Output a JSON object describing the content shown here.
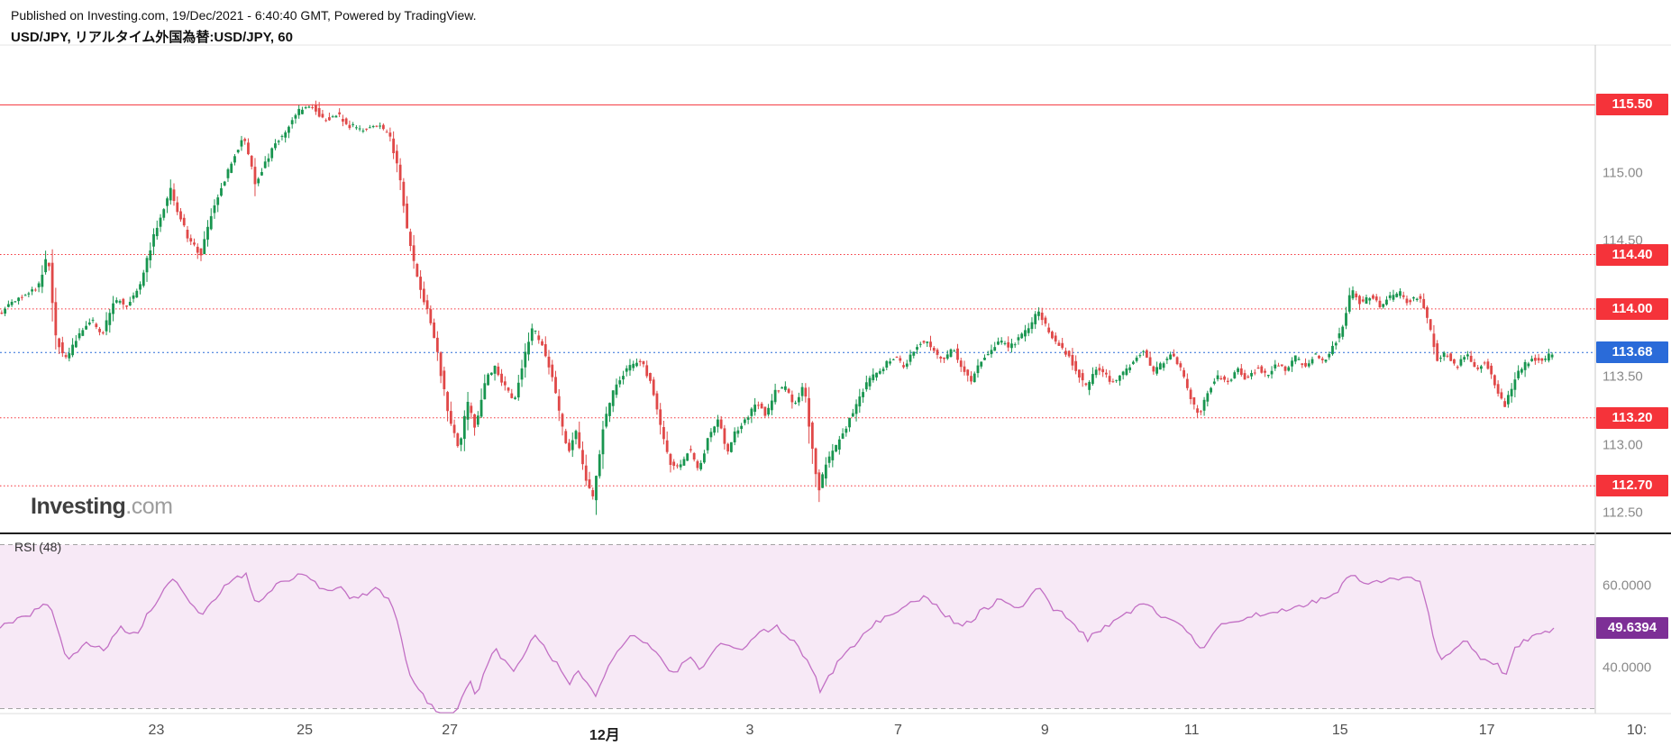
{
  "header": {
    "published": "Published on Investing.com, 19/Dec/2021 - 6:40:40 GMT, Powered by TradingView.",
    "title": "USD/JPY, リアルタイム外国為替:USD/JPY, 60"
  },
  "logo": {
    "text": "Investing",
    "suffix": ".com"
  },
  "chart_data": [
    {
      "type": "candlestick",
      "symbol": "USD/JPY",
      "exchange": "リアルタイム外国為替",
      "interval": "60",
      "ylim": [
        112.35,
        115.94
      ],
      "x_extent": 0.974,
      "candle_count": 460,
      "up_color": "#18954f",
      "down_color": "#e04848",
      "grid": false,
      "legend_position": "none",
      "y_ticks": [
        {
          "value": 115.0,
          "label": "115.00"
        },
        {
          "value": 114.5,
          "label": "114.50"
        },
        {
          "value": 113.5,
          "label": "113.50"
        },
        {
          "value": 113.0,
          "label": "113.00"
        },
        {
          "value": 112.5,
          "label": "112.50"
        }
      ],
      "level_lines": [
        {
          "price": 115.5,
          "label": "115.50",
          "style": "solid",
          "color": "#f5333a"
        },
        {
          "price": 114.4,
          "label": "114.40",
          "style": "dotted",
          "color": "#f5333a"
        },
        {
          "price": 114.0,
          "label": "114.00",
          "style": "dotted",
          "color": "#f5333a"
        },
        {
          "price": 113.2,
          "label": "113.20",
          "style": "dotted",
          "color": "#f5333a"
        },
        {
          "price": 112.7,
          "label": "112.70",
          "style": "dotted",
          "color": "#f5333a"
        }
      ],
      "last_price": {
        "value": 113.68,
        "label": "113.68",
        "color": "#2a6bd9"
      },
      "x_ticks": [
        {
          "label": "23",
          "x": 0.098
        },
        {
          "label": "25",
          "x": 0.191
        },
        {
          "label": "27",
          "x": 0.282
        },
        {
          "label": "12月",
          "x": 0.379,
          "bold": true
        },
        {
          "label": "3",
          "x": 0.47
        },
        {
          "label": "7",
          "x": 0.563
        },
        {
          "label": "9",
          "x": 0.655
        },
        {
          "label": "11",
          "x": 0.747
        },
        {
          "label": "15",
          "x": 0.84
        },
        {
          "label": "17",
          "x": 0.932
        },
        {
          "label": "10:",
          "x": 1.026
        }
      ],
      "price_path": [
        [
          0.0,
          113.96
        ],
        [
          0.008,
          114.04
        ],
        [
          0.018,
          114.1
        ],
        [
          0.026,
          114.18
        ],
        [
          0.031,
          114.42
        ],
        [
          0.036,
          113.8
        ],
        [
          0.042,
          113.62
        ],
        [
          0.05,
          113.8
        ],
        [
          0.058,
          113.93
        ],
        [
          0.065,
          113.81
        ],
        [
          0.073,
          114.07
        ],
        [
          0.081,
          114.03
        ],
        [
          0.089,
          114.18
        ],
        [
          0.096,
          114.48
        ],
        [
          0.103,
          114.73
        ],
        [
          0.108,
          114.88
        ],
        [
          0.114,
          114.66
        ],
        [
          0.12,
          114.5
        ],
        [
          0.127,
          114.4
        ],
        [
          0.133,
          114.68
        ],
        [
          0.141,
          114.93
        ],
        [
          0.148,
          115.13
        ],
        [
          0.154,
          115.27
        ],
        [
          0.161,
          114.93
        ],
        [
          0.167,
          115.06
        ],
        [
          0.173,
          115.2
        ],
        [
          0.181,
          115.33
        ],
        [
          0.189,
          115.46
        ],
        [
          0.196,
          115.5
        ],
        [
          0.204,
          115.39
        ],
        [
          0.212,
          115.43
        ],
        [
          0.22,
          115.35
        ],
        [
          0.228,
          115.31
        ],
        [
          0.236,
          115.37
        ],
        [
          0.245,
          115.28
        ],
        [
          0.251,
          115.02
        ],
        [
          0.257,
          114.52
        ],
        [
          0.263,
          114.22
        ],
        [
          0.269,
          113.98
        ],
        [
          0.274,
          113.75
        ],
        [
          0.279,
          113.42
        ],
        [
          0.284,
          113.12
        ],
        [
          0.289,
          112.98
        ],
        [
          0.294,
          113.32
        ],
        [
          0.299,
          113.12
        ],
        [
          0.305,
          113.46
        ],
        [
          0.311,
          113.58
        ],
        [
          0.317,
          113.44
        ],
        [
          0.323,
          113.32
        ],
        [
          0.329,
          113.62
        ],
        [
          0.335,
          113.86
        ],
        [
          0.341,
          113.73
        ],
        [
          0.347,
          113.52
        ],
        [
          0.353,
          113.15
        ],
        [
          0.357,
          112.94
        ],
        [
          0.362,
          113.1
        ],
        [
          0.368,
          112.75
        ],
        [
          0.373,
          112.6
        ],
        [
          0.379,
          113.12
        ],
        [
          0.385,
          113.38
        ],
        [
          0.391,
          113.52
        ],
        [
          0.397,
          113.58
        ],
        [
          0.403,
          113.62
        ],
        [
          0.409,
          113.46
        ],
        [
          0.415,
          113.13
        ],
        [
          0.421,
          112.87
        ],
        [
          0.427,
          112.82
        ],
        [
          0.433,
          112.98
        ],
        [
          0.439,
          112.79
        ],
        [
          0.445,
          113.06
        ],
        [
          0.451,
          113.2
        ],
        [
          0.457,
          112.95
        ],
        [
          0.463,
          113.12
        ],
        [
          0.469,
          113.18
        ],
        [
          0.475,
          113.33
        ],
        [
          0.481,
          113.22
        ],
        [
          0.487,
          113.39
        ],
        [
          0.493,
          113.42
        ],
        [
          0.499,
          113.3
        ],
        [
          0.505,
          113.44
        ],
        [
          0.509,
          113.08
        ],
        [
          0.514,
          112.66
        ],
        [
          0.519,
          112.86
        ],
        [
          0.525,
          112.98
        ],
        [
          0.531,
          113.12
        ],
        [
          0.537,
          113.28
        ],
        [
          0.543,
          113.43
        ],
        [
          0.549,
          113.52
        ],
        [
          0.556,
          113.59
        ],
        [
          0.562,
          113.65
        ],
        [
          0.568,
          113.57
        ],
        [
          0.574,
          113.7
        ],
        [
          0.58,
          113.77
        ],
        [
          0.586,
          113.69
        ],
        [
          0.592,
          113.61
        ],
        [
          0.598,
          113.72
        ],
        [
          0.604,
          113.57
        ],
        [
          0.61,
          113.47
        ],
        [
          0.616,
          113.62
        ],
        [
          0.622,
          113.7
        ],
        [
          0.628,
          113.77
        ],
        [
          0.634,
          113.71
        ],
        [
          0.64,
          113.79
        ],
        [
          0.646,
          113.86
        ],
        [
          0.652,
          113.99
        ],
        [
          0.658,
          113.84
        ],
        [
          0.664,
          113.74
        ],
        [
          0.67,
          113.67
        ],
        [
          0.676,
          113.54
        ],
        [
          0.682,
          113.42
        ],
        [
          0.688,
          113.57
        ],
        [
          0.694,
          113.51
        ],
        [
          0.7,
          113.45
        ],
        [
          0.706,
          113.54
        ],
        [
          0.712,
          113.62
        ],
        [
          0.718,
          113.71
        ],
        [
          0.724,
          113.54
        ],
        [
          0.73,
          113.6
        ],
        [
          0.736,
          113.67
        ],
        [
          0.742,
          113.54
        ],
        [
          0.748,
          113.31
        ],
        [
          0.753,
          113.22
        ],
        [
          0.759,
          113.42
        ],
        [
          0.765,
          113.51
        ],
        [
          0.771,
          113.45
        ],
        [
          0.777,
          113.55
        ],
        [
          0.783,
          113.48
        ],
        [
          0.789,
          113.57
        ],
        [
          0.795,
          113.51
        ],
        [
          0.801,
          113.6
        ],
        [
          0.807,
          113.55
        ],
        [
          0.813,
          113.64
        ],
        [
          0.819,
          113.58
        ],
        [
          0.825,
          113.67
        ],
        [
          0.831,
          113.62
        ],
        [
          0.837,
          113.73
        ],
        [
          0.843,
          113.87
        ],
        [
          0.848,
          114.14
        ],
        [
          0.854,
          114.04
        ],
        [
          0.86,
          114.1
        ],
        [
          0.866,
          114.02
        ],
        [
          0.872,
          114.08
        ],
        [
          0.878,
          114.12
        ],
        [
          0.884,
          114.05
        ],
        [
          0.89,
          114.1
        ],
        [
          0.896,
          113.93
        ],
        [
          0.902,
          113.62
        ],
        [
          0.908,
          113.68
        ],
        [
          0.914,
          113.57
        ],
        [
          0.92,
          113.67
        ],
        [
          0.926,
          113.55
        ],
        [
          0.932,
          113.62
        ],
        [
          0.938,
          113.45
        ],
        [
          0.944,
          113.27
        ],
        [
          0.95,
          113.47
        ],
        [
          0.956,
          113.59
        ],
        [
          0.962,
          113.64
        ],
        [
          0.968,
          113.61
        ],
        [
          0.974,
          113.68
        ]
      ]
    },
    {
      "type": "line",
      "title": "RSI (48)",
      "ylim": [
        28.8,
        72.3
      ],
      "line_color": "#c26fc4",
      "band": {
        "from": 30,
        "to": 70,
        "fill": "#f7e9f6",
        "border_color": "#a3a3a3"
      },
      "y_ticks": [
        {
          "value": 60,
          "label": "60.0000"
        },
        {
          "value": 40,
          "label": "40.0000"
        }
      ],
      "last_value": {
        "value": 49.6394,
        "label": "49.6394",
        "color": "#7d2f96"
      },
      "rsi_path": [
        [
          0.0,
          50
        ],
        [
          0.015,
          52
        ],
        [
          0.031,
          56
        ],
        [
          0.042,
          42
        ],
        [
          0.055,
          46
        ],
        [
          0.065,
          44
        ],
        [
          0.075,
          50
        ],
        [
          0.085,
          48
        ],
        [
          0.096,
          55
        ],
        [
          0.108,
          62
        ],
        [
          0.118,
          56
        ],
        [
          0.127,
          53
        ],
        [
          0.141,
          60
        ],
        [
          0.154,
          63
        ],
        [
          0.161,
          55
        ],
        [
          0.173,
          60
        ],
        [
          0.189,
          63
        ],
        [
          0.196,
          62
        ],
        [
          0.204,
          58
        ],
        [
          0.212,
          60
        ],
        [
          0.22,
          57
        ],
        [
          0.236,
          59
        ],
        [
          0.245,
          56
        ],
        [
          0.251,
          48
        ],
        [
          0.257,
          38
        ],
        [
          0.263,
          34
        ],
        [
          0.274,
          29
        ],
        [
          0.284,
          27
        ],
        [
          0.294,
          37
        ],
        [
          0.299,
          33
        ],
        [
          0.305,
          41
        ],
        [
          0.311,
          44
        ],
        [
          0.323,
          39
        ],
        [
          0.335,
          48
        ],
        [
          0.347,
          42
        ],
        [
          0.357,
          36
        ],
        [
          0.362,
          40
        ],
        [
          0.373,
          33
        ],
        [
          0.385,
          43
        ],
        [
          0.397,
          48
        ],
        [
          0.409,
          45
        ],
        [
          0.421,
          38
        ],
        [
          0.433,
          43
        ],
        [
          0.439,
          39
        ],
        [
          0.451,
          46
        ],
        [
          0.463,
          44
        ],
        [
          0.475,
          48
        ],
        [
          0.487,
          50
        ],
        [
          0.499,
          46
        ],
        [
          0.509,
          40
        ],
        [
          0.514,
          34
        ],
        [
          0.525,
          41
        ],
        [
          0.537,
          46
        ],
        [
          0.549,
          51
        ],
        [
          0.562,
          54
        ],
        [
          0.574,
          56
        ],
        [
          0.58,
          58
        ],
        [
          0.592,
          53
        ],
        [
          0.604,
          50
        ],
        [
          0.616,
          54
        ],
        [
          0.628,
          57
        ],
        [
          0.64,
          54
        ],
        [
          0.652,
          60
        ],
        [
          0.658,
          55
        ],
        [
          0.67,
          52
        ],
        [
          0.682,
          47
        ],
        [
          0.694,
          50
        ],
        [
          0.706,
          53
        ],
        [
          0.718,
          56
        ],
        [
          0.73,
          52
        ],
        [
          0.742,
          50
        ],
        [
          0.753,
          44
        ],
        [
          0.765,
          50
        ],
        [
          0.777,
          52
        ],
        [
          0.789,
          53
        ],
        [
          0.801,
          54
        ],
        [
          0.813,
          55
        ],
        [
          0.825,
          56
        ],
        [
          0.837,
          58
        ],
        [
          0.848,
          63
        ],
        [
          0.854,
          60
        ],
        [
          0.866,
          61
        ],
        [
          0.878,
          62
        ],
        [
          0.89,
          61
        ],
        [
          0.896,
          52
        ],
        [
          0.902,
          42
        ],
        [
          0.914,
          45
        ],
        [
          0.92,
          47
        ],
        [
          0.926,
          43
        ],
        [
          0.938,
          41
        ],
        [
          0.944,
          38
        ],
        [
          0.95,
          45
        ],
        [
          0.962,
          48
        ],
        [
          0.974,
          49.64
        ]
      ]
    }
  ]
}
